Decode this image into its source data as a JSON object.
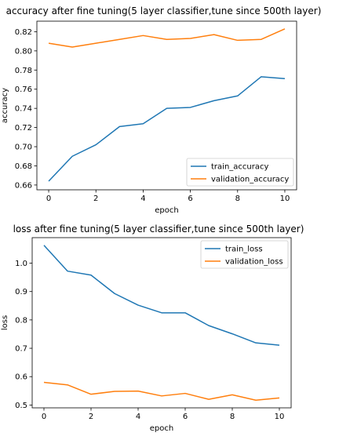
{
  "chart_data": [
    {
      "type": "line",
      "title": "accuracy after fine tuning(5 layer classifier,tune since 500th layer)",
      "xlabel": "epoch",
      "ylabel": "accuracy",
      "xlim": [
        -0.5,
        10.5
      ],
      "ylim": [
        0.655,
        0.831
      ],
      "xticks": [
        0,
        2,
        4,
        6,
        8,
        10
      ],
      "xtick_labels": [
        "0",
        "2",
        "4",
        "6",
        "8",
        "10"
      ],
      "yticks": [
        0.66,
        0.68,
        0.7,
        0.72,
        0.74,
        0.76,
        0.78,
        0.8,
        0.82
      ],
      "ytick_labels": [
        "0.66",
        "0.68",
        "0.70",
        "0.72",
        "0.74",
        "0.76",
        "0.78",
        "0.80",
        "0.82"
      ],
      "grid": false,
      "legend": "lower-right",
      "x": [
        0,
        1,
        2,
        3,
        4,
        5,
        6,
        7,
        8,
        9,
        10
      ],
      "series": [
        {
          "name": "train_accuracy",
          "color": "#1f77b4",
          "values": [
            0.664,
            0.69,
            0.702,
            0.721,
            0.724,
            0.74,
            0.741,
            0.748,
            0.753,
            0.773,
            0.771
          ]
        },
        {
          "name": "validation_accuracy",
          "color": "#ff7f0e",
          "values": [
            0.808,
            0.804,
            0.808,
            0.812,
            0.816,
            0.812,
            0.813,
            0.817,
            0.811,
            0.812,
            0.823
          ]
        }
      ]
    },
    {
      "type": "line",
      "title": "loss after fine tuning(5 layer classifier,tune since 500th layer)",
      "xlabel": "epoch",
      "ylabel": "loss",
      "xlim": [
        -0.5,
        10.5
      ],
      "ylim": [
        0.49,
        1.09
      ],
      "xticks": [
        0,
        2,
        4,
        6,
        8,
        10
      ],
      "xtick_labels": [
        "0",
        "2",
        "4",
        "6",
        "8",
        "10"
      ],
      "yticks": [
        0.5,
        0.6,
        0.7,
        0.8,
        0.9,
        1.0
      ],
      "ytick_labels": [
        "0.5",
        "0.6",
        "0.7",
        "0.8",
        "0.9",
        "1.0"
      ],
      "grid": false,
      "legend": "upper-right",
      "x": [
        0,
        1,
        2,
        3,
        4,
        5,
        6,
        7,
        8,
        9,
        10
      ],
      "series": [
        {
          "name": "train_loss",
          "color": "#1f77b4",
          "values": [
            1.063,
            0.972,
            0.958,
            0.893,
            0.852,
            0.825,
            0.825,
            0.78,
            0.751,
            0.719,
            0.711
          ]
        },
        {
          "name": "validation_loss",
          "color": "#ff7f0e",
          "values": [
            0.58,
            0.571,
            0.538,
            0.548,
            0.549,
            0.532,
            0.541,
            0.52,
            0.536,
            0.517,
            0.525
          ]
        }
      ]
    }
  ]
}
